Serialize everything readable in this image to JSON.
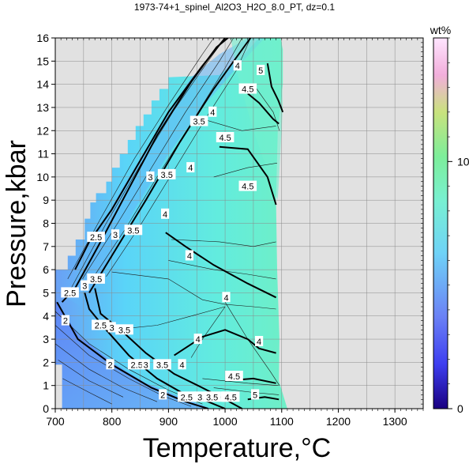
{
  "chart_data": {
    "type": "heatmap",
    "title": "1973-74+1_spinel_Al2O3_H2O_8.0_PT, dz=0.1",
    "xlabel": "Temperature,°C",
    "ylabel": "Pressure,kbar",
    "xlim": [
      700,
      1350
    ],
    "ylim": [
      0,
      16
    ],
    "x_ticks": [
      700,
      800,
      900,
      1000,
      1100,
      1200,
      1300
    ],
    "y_ticks": [
      0,
      1,
      2,
      3,
      4,
      5,
      6,
      7,
      8,
      9,
      10,
      11,
      12,
      13,
      14,
      15,
      16
    ],
    "grid": true,
    "colorbar": {
      "unit": "wt%",
      "range": [
        0,
        15
      ],
      "ticks": [
        0,
        10
      ],
      "colors": [
        "#1a0080",
        "#3e3ef0",
        "#6b82f5",
        "#6fd3f7",
        "#78f0d2",
        "#7dee9a",
        "#c9e27d",
        "#f2aedb",
        "#ffe5ff"
      ]
    },
    "background_color": "#e1e1e1",
    "contour_labels": [
      {
        "text": "2",
        "x": 718,
        "y": 3.8
      },
      {
        "text": "2",
        "x": 797,
        "y": 1.9
      },
      {
        "text": "2",
        "x": 890,
        "y": 0.6
      },
      {
        "text": "2.5",
        "x": 726,
        "y": 5.0
      },
      {
        "text": "2.5",
        "x": 772,
        "y": 7.4
      },
      {
        "text": "2.5",
        "x": 780,
        "y": 3.6
      },
      {
        "text": "2.5",
        "x": 844,
        "y": 1.9
      },
      {
        "text": "2.5",
        "x": 932,
        "y": 0.5
      },
      {
        "text": "3",
        "x": 752,
        "y": 5.3
      },
      {
        "text": "3",
        "x": 806,
        "y": 7.5
      },
      {
        "text": "3",
        "x": 868,
        "y": 10.0
      },
      {
        "text": "3",
        "x": 800,
        "y": 3.5
      },
      {
        "text": "3",
        "x": 860,
        "y": 1.9
      },
      {
        "text": "3.5",
        "x": 772,
        "y": 5.6
      },
      {
        "text": "3.5",
        "x": 838,
        "y": 7.7
      },
      {
        "text": "3.5",
        "x": 897,
        "y": 10.1
      },
      {
        "text": "3.5",
        "x": 954,
        "y": 12.4
      },
      {
        "text": "3.5",
        "x": 822,
        "y": 3.4
      },
      {
        "text": "3.5",
        "x": 889,
        "y": 1.9
      },
      {
        "text": "3.5",
        "x": 962,
        "y": 0.5
      },
      {
        "text": "3.5",
        "x": 977,
        "y": 0.5
      },
      {
        "text": "4",
        "x": 894,
        "y": 8.4
      },
      {
        "text": "4",
        "x": 939,
        "y": 10.4
      },
      {
        "text": "4",
        "x": 978,
        "y": 12.8
      },
      {
        "text": "4",
        "x": 1022,
        "y": 14.8
      },
      {
        "text": "4",
        "x": 924,
        "y": 1.9
      },
      {
        "text": "4",
        "x": 937,
        "y": 6.6
      },
      {
        "text": "4",
        "x": 1002,
        "y": 4.8
      },
      {
        "text": "4",
        "x": 952,
        "y": 3.0
      },
      {
        "text": "4",
        "x": 1060,
        "y": 2.9
      },
      {
        "text": "4",
        "x": 1000,
        "y": 0.5
      },
      {
        "text": "4.5",
        "x": 1000,
        "y": 11.7
      },
      {
        "text": "4.5",
        "x": 1040,
        "y": 9.6
      },
      {
        "text": "4.5",
        "x": 1040,
        "y": 13.8
      },
      {
        "text": "4.5",
        "x": 1016,
        "y": 1.4
      },
      {
        "text": "4.5",
        "x": 1010,
        "y": 0.5
      },
      {
        "text": "5",
        "x": 1063,
        "y": 14.6
      },
      {
        "text": "5",
        "x": 1053,
        "y": 0.6
      }
    ]
  }
}
